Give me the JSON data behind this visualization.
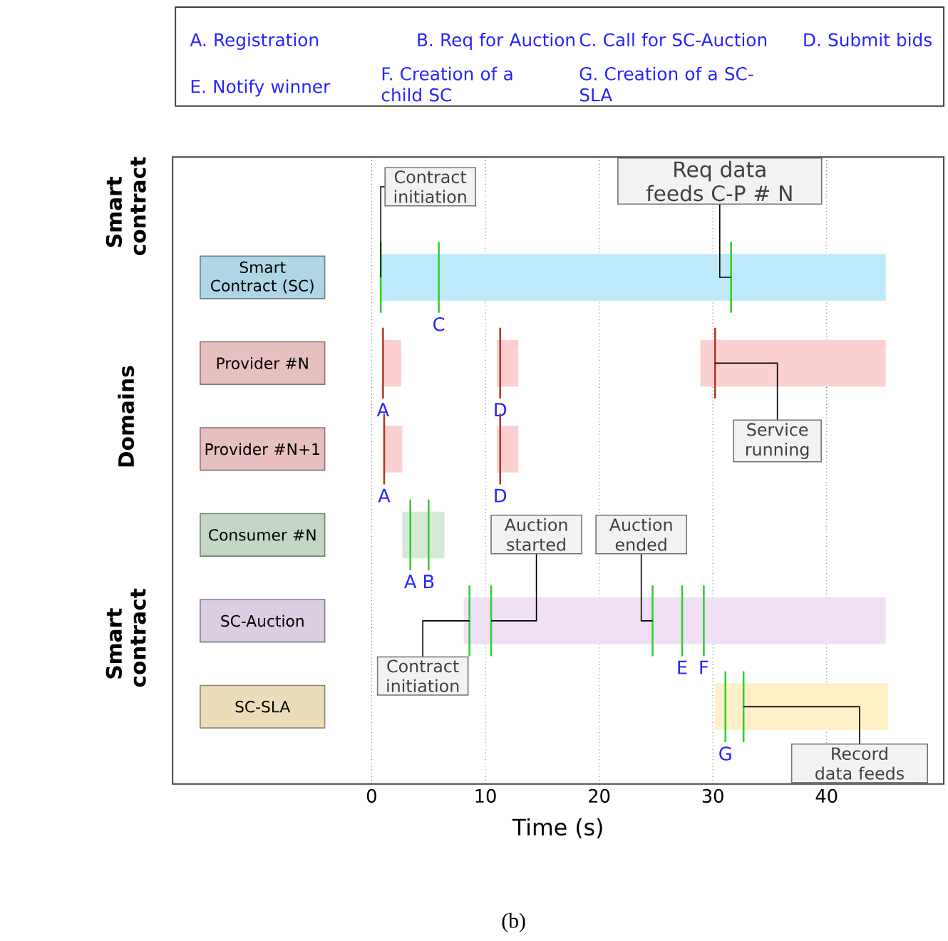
{
  "chart_data": {
    "type": "bar",
    "orientation": "horizontal",
    "xlabel": "Time (s)",
    "categories": [
      "Smart Contract (SC)",
      "Provider #N",
      "Provider #N+1",
      "Consumer #N",
      "SC-Auction",
      "SC-SLA"
    ],
    "series": [
      {
        "base": [
          0.8,
          1.0,
          1.1,
          2.7,
          8.1,
          30.2
        ],
        "values": [
          44.4,
          1.6,
          1.6,
          3.7,
          37.1,
          15.2
        ],
        "colors": [
          "#bde9fb",
          "#fcd0d0",
          "#fcd0d0",
          "#d5ead5",
          "#efe0f6",
          "#fff0c8"
        ]
      },
      {
        "base": [
          null,
          11.0,
          11.0,
          null,
          null,
          null
        ],
        "values": [
          null,
          1.9,
          1.9,
          null,
          null,
          null
        ],
        "color": "#fcd0d0"
      },
      {
        "base": [
          null,
          28.9,
          null,
          null,
          null,
          null
        ],
        "values": [
          null,
          16.3,
          null,
          null,
          null,
          null
        ],
        "color": "#fcd0d0"
      }
    ],
    "xlim": [
      -17.5,
      50.3
    ],
    "xticks": [
      0,
      10,
      20,
      30,
      40
    ],
    "grid": "x",
    "annotations": [
      "A. Registration",
      "B. Req for Auction",
      "C. Call for SC-Auction",
      "D. Submit bids",
      "E. Notify winner",
      "F. Creation of a child SC",
      "G. Creation of a SC-SLA",
      "Smart contract",
      "Domains",
      "Smart contract",
      "(b)",
      {
        "text": "Contract initiation",
        "x": 0.8,
        "y": "Smart Contract (SC)"
      },
      "C",
      "Req data feeds C-P # N",
      "A",
      "D",
      "Service running",
      "A",
      "D",
      "A",
      "B",
      "Contract initiation",
      "Auction started",
      "Auction ended",
      "E",
      "F",
      "G",
      "Record data feeds"
    ]
  }
}
